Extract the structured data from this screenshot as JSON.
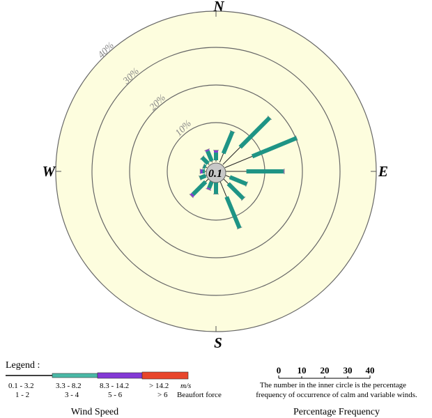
{
  "chart_data": {
    "type": "wind-rose",
    "compass": {
      "north": "N",
      "east": "E",
      "south": "S",
      "west": "W"
    },
    "ring_labels": [
      "10%",
      "20%",
      "30%",
      "40%"
    ],
    "ring_values": [
      10,
      20,
      30,
      40
    ],
    "calm_value": "0.1",
    "colors": {
      "background": "#fdfdde",
      "bar_main": "#1e9485",
      "bar_light": "#4ab9a7",
      "band2": "#8439d6",
      "band3": "#e8452b",
      "center": "#c8c8c8"
    },
    "directions": [
      {
        "angle": 0,
        "band1": 2.4,
        "band2": 0.6
      },
      {
        "angle": 22.5,
        "band1": 8.8,
        "band2": 0
      },
      {
        "angle": 45,
        "band1": 17.4,
        "band2": 0
      },
      {
        "angle": 67.5,
        "band1": 20.4,
        "band2": 0
      },
      {
        "angle": 90,
        "band1": 15.2,
        "band2": 0.2
      },
      {
        "angle": 112.5,
        "band1": 6.2,
        "band2": 0
      },
      {
        "angle": 135,
        "band1": 7.6,
        "band2": 0
      },
      {
        "angle": 157.5,
        "band1": 13.6,
        "band2": 0
      },
      {
        "angle": 180,
        "band1": 3.4,
        "band2": 0
      },
      {
        "angle": 202.5,
        "band1": 2.2,
        "band2": 0.4
      },
      {
        "angle": 225,
        "band1": 6.0,
        "band2": 0.6
      },
      {
        "angle": 247.5,
        "band1": 2.0,
        "band2": 0
      },
      {
        "angle": 270,
        "band1": 1.0,
        "band2": 0.6
      },
      {
        "angle": 292.5,
        "band1": 1.0,
        "band2": 0
      },
      {
        "angle": 315,
        "band1": 2.6,
        "band2": 0
      },
      {
        "angle": 337.5,
        "band1": 3.2,
        "band2": 0.4
      }
    ]
  },
  "legend": {
    "title": "Legend :",
    "ranges_ms": [
      "0.1 - 3.2",
      "3.3 - 8.2",
      "8.3 - 14.2",
      "> 14.2"
    ],
    "unit_ms": "m/s",
    "ranges_beaufort": [
      "1 - 2",
      "3 - 4",
      "5 - 6",
      "> 6"
    ],
    "unit_beaufort": "Beaufort force",
    "caption": "Wind Speed"
  },
  "percentage_scale": {
    "ticks": [
      "0",
      "10",
      "20",
      "30",
      "40"
    ],
    "note_line1": "The number in the inner circle is the percentage",
    "note_line2": "frequency of occurrence of calm and variable winds.",
    "caption": "Percentage Frequency"
  }
}
